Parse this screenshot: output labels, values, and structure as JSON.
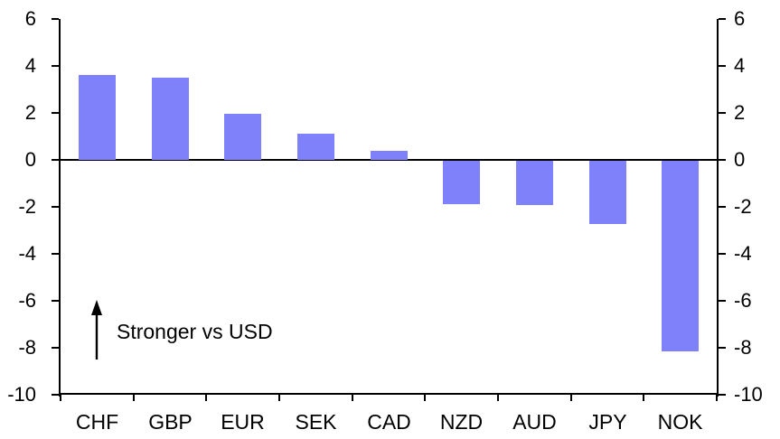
{
  "chart_data": {
    "type": "bar",
    "categories": [
      "CHF",
      "GBP",
      "EUR",
      "SEK",
      "CAD",
      "NZD",
      "AUD",
      "JPY",
      "NOK"
    ],
    "values": [
      3.6,
      3.5,
      1.95,
      1.1,
      0.4,
      -1.85,
      -1.9,
      -2.7,
      -8.1
    ],
    "title": "",
    "xlabel": "",
    "ylabel": "",
    "ylim": [
      -10,
      6
    ],
    "yticks": [
      6,
      4,
      2,
      0,
      -2,
      -4,
      -6,
      -8,
      -10
    ],
    "dual_axis": true,
    "grid": false,
    "legend": "none",
    "annotation": {
      "text": "Stronger vs USD",
      "arrow_direction": "up"
    },
    "colors": {
      "bar_fill": "#7f81fa",
      "axis": "#000000",
      "text": "#000000",
      "background": "#ffffff"
    }
  }
}
